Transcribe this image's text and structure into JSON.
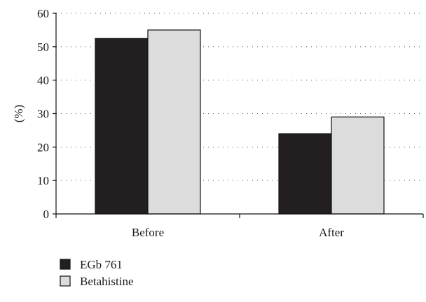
{
  "chart_data": {
    "type": "bar",
    "title": "",
    "xlabel": "",
    "ylabel": "(%)",
    "ylim": [
      0,
      60
    ],
    "yticks": [
      0,
      10,
      20,
      30,
      40,
      50,
      60
    ],
    "grid": true,
    "legend_position": "bottom-left",
    "categories": [
      "Before",
      "After"
    ],
    "series": [
      {
        "name": "EGb 761",
        "values": [
          52.5,
          24.0
        ],
        "color": "#231f20"
      },
      {
        "name": "Betahistine",
        "values": [
          55.0,
          29.0
        ],
        "color": "#dcdcdc"
      }
    ]
  }
}
